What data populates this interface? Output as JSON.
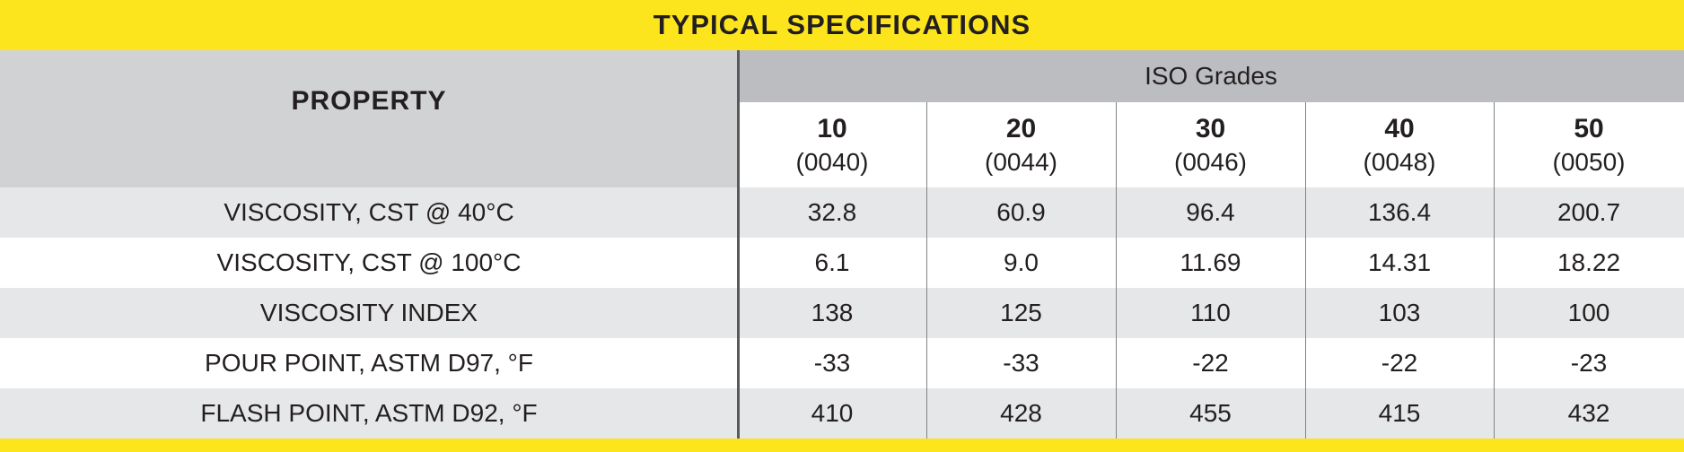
{
  "title": "TYPICAL SPECIFICATIONS",
  "header": {
    "property": "PROPERTY",
    "group": "ISO Grades",
    "grades": [
      {
        "number": "10",
        "code": "(0040)"
      },
      {
        "number": "20",
        "code": "(0044)"
      },
      {
        "number": "30",
        "code": "(0046)"
      },
      {
        "number": "40",
        "code": "(0048)"
      },
      {
        "number": "50",
        "code": "(0050)"
      }
    ]
  },
  "rows": [
    {
      "property": "VISCOSITY, CST @ 40°C",
      "values": [
        "32.8",
        "60.9",
        "96.4",
        "136.4",
        "200.7"
      ]
    },
    {
      "property": "VISCOSITY, CST @ 100°C",
      "values": [
        "6.1",
        "9.0",
        "11.69",
        "14.31",
        "18.22"
      ]
    },
    {
      "property": "VISCOSITY INDEX",
      "values": [
        "138",
        "125",
        "110",
        "103",
        "100"
      ]
    },
    {
      "property": "POUR POINT, ASTM D97, °F",
      "values": [
        "-33",
        "-33",
        "-22",
        "-22",
        "-23"
      ]
    },
    {
      "property": "FLASH POINT, ASTM D92, °F",
      "values": [
        "410",
        "428",
        "455",
        "415",
        "432"
      ]
    }
  ]
}
